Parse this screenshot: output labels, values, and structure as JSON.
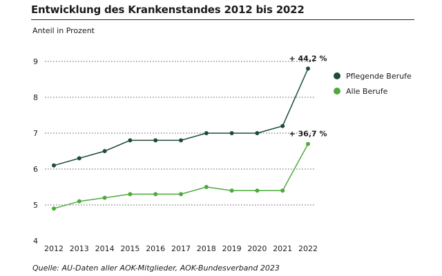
{
  "chart_data": {
    "type": "line",
    "title": "Entwicklung des Krankenstandes 2012 bis 2022",
    "ylabel": "Anteil in Prozent",
    "xlabel": "",
    "x": [
      "2012",
      "2013",
      "2014",
      "2015",
      "2016",
      "2017",
      "2018",
      "2019",
      "2020",
      "2021",
      "2022"
    ],
    "ylim": [
      4,
      9
    ],
    "yticks": [
      4,
      5,
      6,
      7,
      8,
      9
    ],
    "grid": "horizontal dotted",
    "legend_position": "right",
    "series": [
      {
        "name": "Pflegende Berufe",
        "color": "#1d4d34",
        "values": [
          6.1,
          6.3,
          6.5,
          6.8,
          6.8,
          6.8,
          7.0,
          7.0,
          7.0,
          7.2,
          8.8
        ],
        "annotation": "+ 44,2 %"
      },
      {
        "name": "Alle Berufe",
        "color": "#4caa3b",
        "values": [
          4.9,
          5.1,
          5.2,
          5.3,
          5.3,
          5.3,
          5.5,
          5.4,
          5.4,
          5.4,
          6.7
        ],
        "annotation": "+ 36,7 %"
      }
    ],
    "source": "Quelle: AU-Daten aller AOK-Mitglieder, AOK-Bundesverband 2023"
  }
}
